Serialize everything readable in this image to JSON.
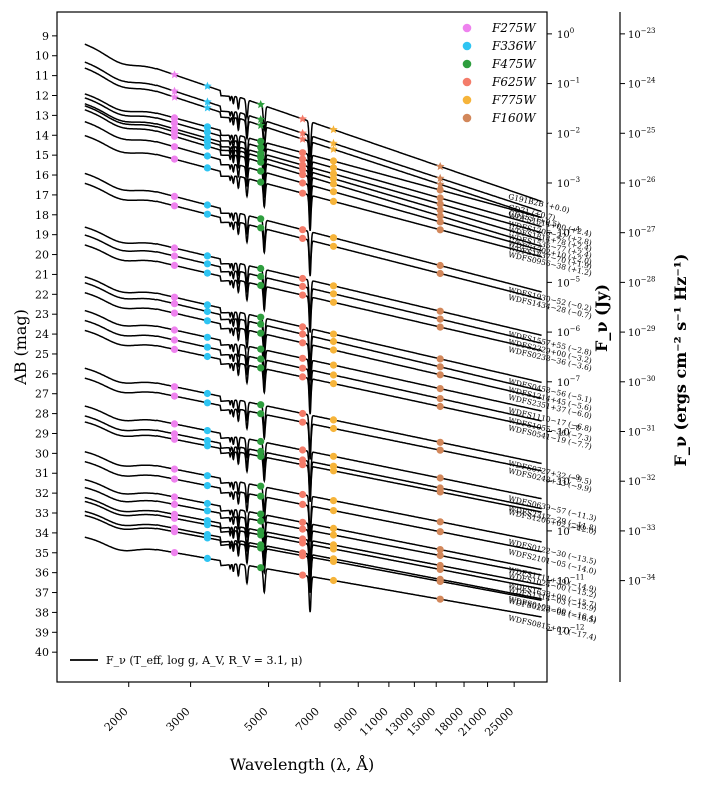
{
  "chart_data": {
    "type": "line",
    "xlabel": "Wavelength (λ, Å)",
    "ylabel": "AB (mag)",
    "y2label": "F_ν (Jy)",
    "y3label": "F_ν (ergs cm⁻² s⁻¹ Hz⁻¹)",
    "xscale": "log",
    "xlim": [
      1250,
      31000
    ],
    "ylim": [
      41.5,
      7.8
    ],
    "x_ticks": [
      2000,
      3000,
      5000,
      7000,
      9000,
      11000,
      13000,
      15000,
      18000,
      21000,
      25000
    ],
    "x_tick_labels": [
      "2000",
      "3000",
      "5000",
      "7000",
      "9000",
      "11000",
      "13000",
      "15000",
      "18000",
      "21000",
      "25000"
    ],
    "y_ticks": [
      9,
      10,
      11,
      12,
      13,
      14,
      15,
      16,
      17,
      18,
      19,
      20,
      21,
      22,
      23,
      24,
      25,
      26,
      27,
      28,
      29,
      30,
      31,
      32,
      33,
      34,
      35,
      36,
      37,
      38,
      39,
      40
    ],
    "y_tick_labels": [
      "9",
      "10",
      "11",
      "12",
      "13",
      "14",
      "15",
      "16",
      "17",
      "18",
      "19",
      "20",
      "21",
      "22",
      "23",
      "24",
      "25",
      "26",
      "27",
      "28",
      "29",
      "30",
      "31",
      "32",
      "33",
      "34",
      "35",
      "36",
      "37",
      "38",
      "39",
      "40"
    ],
    "jy_ticks": [
      {
        "base": "10",
        "exp": "0",
        "mag": 8.9
      },
      {
        "base": "10",
        "exp": "−1",
        "mag": 11.4
      },
      {
        "base": "10",
        "exp": "−2",
        "mag": 13.9
      },
      {
        "base": "10",
        "exp": "−3",
        "mag": 16.4
      },
      {
        "base": "10",
        "exp": "−4",
        "mag": 18.9
      },
      {
        "base": "10",
        "exp": "−5",
        "mag": 21.4
      },
      {
        "base": "10",
        "exp": "−6",
        "mag": 23.9
      },
      {
        "base": "10",
        "exp": "−7",
        "mag": 26.4
      },
      {
        "base": "10",
        "exp": "−8",
        "mag": 28.9
      },
      {
        "base": "10",
        "exp": "−9",
        "mag": 31.4
      },
      {
        "base": "10",
        "exp": "−10",
        "mag": 33.9
      },
      {
        "base": "10",
        "exp": "−11",
        "mag": 36.4
      },
      {
        "base": "10",
        "exp": "−12",
        "mag": 38.9
      }
    ],
    "cgs_ticks": [
      {
        "base": "10",
        "exp": "−23",
        "mag": 8.9
      },
      {
        "base": "10",
        "exp": "−24",
        "mag": 11.4
      },
      {
        "base": "10",
        "exp": "−25",
        "mag": 13.9
      },
      {
        "base": "10",
        "exp": "−26",
        "mag": 16.4
      },
      {
        "base": "10",
        "exp": "−27",
        "mag": 18.9
      },
      {
        "base": "10",
        "exp": "−28",
        "mag": 21.4
      },
      {
        "base": "10",
        "exp": "−29",
        "mag": 23.9
      },
      {
        "base": "10",
        "exp": "−30",
        "mag": 26.4
      },
      {
        "base": "10",
        "exp": "−31",
        "mag": 28.9
      },
      {
        "base": "10",
        "exp": "−32",
        "mag": 31.4
      },
      {
        "base": "10",
        "exp": "−33",
        "mag": 33.9
      },
      {
        "base": "10",
        "exp": "−34",
        "mag": 36.4
      }
    ],
    "filters": [
      {
        "name": "F275W",
        "wavelength": 2700,
        "color": "#ee82ee"
      },
      {
        "name": "F336W",
        "wavelength": 3350,
        "color": "#2ec4f2"
      },
      {
        "name": "F475W",
        "wavelength": 4750,
        "color": "#2e9e3e"
      },
      {
        "name": "F625W",
        "wavelength": 6250,
        "color": "#f47c6a"
      },
      {
        "name": "F775W",
        "wavelength": 7650,
        "color": "#f6b43a"
      },
      {
        "name": "F160W",
        "wavelength": 15400,
        "color": "#d2875a"
      }
    ],
    "series_label": "F_ν (T_eff, log g, A_V, R_V = 3.1, μ)",
    "legend_position": "top-right",
    "series": [
      {
        "name": "G191B2B",
        "offset": "(+0.0)",
        "mag_1500": 9.4,
        "mag_15000": 15.5,
        "points": [
          "star",
          "star",
          "star",
          "star",
          "star",
          "star"
        ]
      },
      {
        "name": "GD71",
        "offset": "(+0.7)",
        "mag_1500": 10.3,
        "mag_15000": 16.1,
        "points": [
          "star",
          "star",
          "star",
          "star",
          "star",
          "star"
        ]
      },
      {
        "name": "GD153",
        "offset": "(+0.5)",
        "mag_1500": 10.6,
        "mag_15000": 16.4,
        "points": [
          "star",
          "star",
          "star",
          "star",
          "star",
          "star"
        ]
      },
      {
        "name": "WDFS1514+00",
        "offset": "(+2.4)",
        "mag_1500": 11.9,
        "mag_15000": 16.7
      },
      {
        "name": "WDFS1206−27",
        "offset": "(+2.8)",
        "mag_1500": 12.1,
        "mag_15000": 17.1
      },
      {
        "name": "WDFS1814+78",
        "offset": "(+2.4)",
        "mag_1500": 12.4,
        "mag_15000": 17.4
      },
      {
        "name": "WDFS1535−77",
        "offset": "(+2.4)",
        "mag_1500": 12.5,
        "mag_15000": 17.7
      },
      {
        "name": "WDFS1302+10",
        "offset": "(+2.0)",
        "mag_1500": 12.7,
        "mag_15000": 18.0
      },
      {
        "name": "WDFS1837−70",
        "offset": "(+1.9)",
        "mag_1500": 13.3,
        "mag_15000": 18.3
      },
      {
        "name": "WDFS0956−38",
        "offset": "(+1.2)",
        "mag_1500": 14.0,
        "mag_15000": 18.7
      },
      {
        "name": "WDFS1930−52",
        "offset": "(−0.2)",
        "mag_1500": 15.9,
        "mag_15000": 20.5
      },
      {
        "name": "WDFS1434−28",
        "offset": "(−0.7)",
        "mag_1500": 16.4,
        "mag_15000": 20.9
      },
      {
        "name": "WDFS1557+55",
        "offset": "(−2.8)",
        "mag_1500": 18.6,
        "mag_15000": 22.8
      },
      {
        "name": "WDFS2329+00",
        "offset": "(−3.2)",
        "mag_1500": 19.0,
        "mag_15000": 23.2
      },
      {
        "name": "WDFS0238−36",
        "offset": "(−3.6)",
        "mag_1500": 19.5,
        "mag_15000": 23.6
      },
      {
        "name": "WDFS0458−56",
        "offset": "(−5.1)",
        "mag_1500": 21.1,
        "mag_15000": 25.2
      },
      {
        "name": "WDFS1214+45",
        "offset": "(−5.6)",
        "mag_1500": 21.4,
        "mag_15000": 25.6
      },
      {
        "name": "WDFS2351+37",
        "offset": "(−6.0)",
        "mag_1500": 21.9,
        "mag_15000": 26.0
      },
      {
        "name": "WDFS1110−17",
        "offset": "(−6.8)",
        "mag_1500": 22.8,
        "mag_15000": 26.7
      },
      {
        "name": "WDFS1055−36",
        "offset": "(−7.3)",
        "mag_1500": 23.3,
        "mag_15000": 27.2
      },
      {
        "name": "WDFS0541−19",
        "offset": "(−7.7)",
        "mag_1500": 23.8,
        "mag_15000": 27.6
      },
      {
        "name": "WDFS0727+32",
        "offset": "(−9.5)",
        "mag_1500": 25.7,
        "mag_15000": 29.4
      },
      {
        "name": "WDFS0248+33",
        "offset": "(−9.9)",
        "mag_1500": 26.2,
        "mag_15000": 29.8
      },
      {
        "name": "WDFS0639−57",
        "offset": "(−11.3)",
        "mag_1500": 27.6,
        "mag_15000": 31.2
      },
      {
        "name": "WDFS2317−29",
        "offset": "(−11.8)",
        "mag_1500": 28.1,
        "mag_15000": 31.7
      },
      {
        "name": "WDFS1206+02",
        "offset": "(−12.0)",
        "mag_1500": 28.4,
        "mag_15000": 31.9
      },
      {
        "name": "WDFS0122−30",
        "offset": "(−13.5)",
        "mag_1500": 29.9,
        "mag_15000": 33.4
      },
      {
        "name": "WDFS2101−05",
        "offset": "(−14.0)",
        "mag_1500": 30.4,
        "mag_15000": 33.9
      },
      {
        "name": "WDFS1111+39",
        "offset": "(−14.9)",
        "mag_1500": 31.3,
        "mag_15000": 34.8
      },
      {
        "name": "WDFS1024−00",
        "offset": "(−15.2)",
        "mag_1500": 31.7,
        "mag_15000": 35.1
      },
      {
        "name": "WDFS1638+00",
        "offset": "(−15.7)",
        "mag_1500": 32.2,
        "mag_15000": 35.6
      },
      {
        "name": "WDFS1314−03",
        "offset": "(−15.9)",
        "mag_1500": 32.4,
        "mag_15000": 35.8
      },
      {
        "name": "WDFS0103−00",
        "offset": "(−16.4)",
        "mag_1500": 32.9,
        "mag_15000": 36.3
      },
      {
        "name": "WDFS0228−08",
        "offset": "(−16.5)",
        "mag_1500": 33.1,
        "mag_15000": 36.4
      },
      {
        "name": "WDFS0815+07",
        "offset": "(−17.4)",
        "mag_1500": 34.2,
        "mag_15000": 37.3
      }
    ]
  }
}
